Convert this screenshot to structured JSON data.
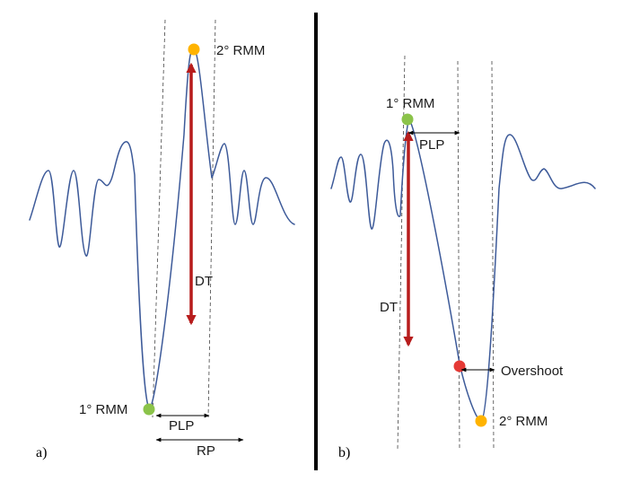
{
  "panels": [
    {
      "id": "a",
      "panel_label": "a)",
      "labels": {
        "first_rmm": "1° RMM",
        "second_rmm": "2° RMM",
        "dt": "DT",
        "plp": "PLP",
        "rp": "RP"
      },
      "marker_colors": {
        "first_rmm": "#8bc34a",
        "second_rmm": "#ffb300"
      }
    },
    {
      "id": "b",
      "panel_label": "b)",
      "labels": {
        "first_rmm": "1° RMM",
        "second_rmm": "2° RMM",
        "dt": "DT",
        "plp": "PLP",
        "overshoot": "Overshoot"
      },
      "marker_colors": {
        "first_rmm": "#8bc34a",
        "second_rmm": "#ffb300",
        "overshoot": "#e53935"
      }
    }
  ],
  "colors": {
    "waveform": "#3d5a99",
    "dt_arrow": "#b71c1c",
    "divider": "#000000"
  }
}
